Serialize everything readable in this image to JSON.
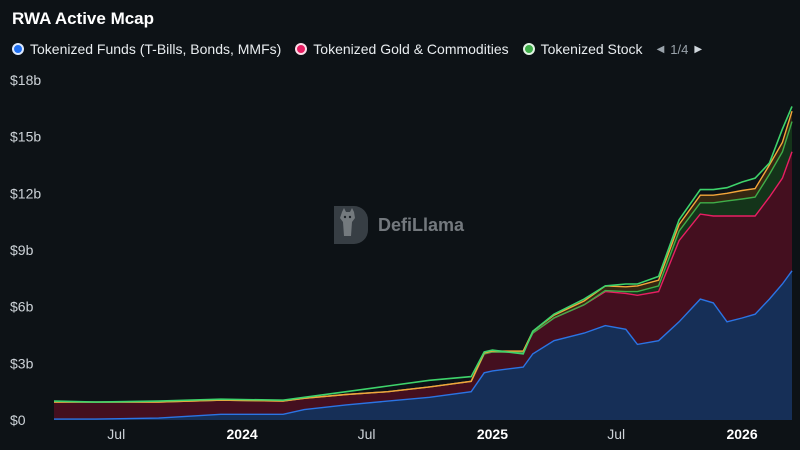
{
  "title": "RWA Active Mcap",
  "legend": {
    "items": [
      {
        "label": "Tokenized Funds (T-Bills, Bonds, MMFs)",
        "color": "#1f6ff0",
        "icon": "circle"
      },
      {
        "label": "Tokenized Gold & Commodities",
        "color": "#e91e63",
        "icon": "circle"
      },
      {
        "label": "Tokenized Stock",
        "color": "#3fae49",
        "icon": "circle"
      }
    ],
    "page": "1/4",
    "prev_icon": "triangle-left-icon",
    "next_icon": "triangle-right-icon"
  },
  "watermark": {
    "text": "DefiLlama",
    "icon": "llama-logo-icon"
  },
  "chart_data": {
    "type": "area",
    "stacked": true,
    "x_axis": {
      "type": "date",
      "range": [
        "2023-04-01",
        "2026-03-15"
      ],
      "tick_labels": [
        {
          "date": "2023-07-01",
          "label": "Jul",
          "bold": false
        },
        {
          "date": "2024-01-01",
          "label": "2024",
          "bold": true
        },
        {
          "date": "2024-07-01",
          "label": "Jul",
          "bold": false
        },
        {
          "date": "2025-01-01",
          "label": "2025",
          "bold": true
        },
        {
          "date": "2025-07-01",
          "label": "Jul",
          "bold": false
        },
        {
          "date": "2026-01-01",
          "label": "2026",
          "bold": true
        }
      ]
    },
    "y_axis": {
      "unit": "USD billions",
      "ylim": [
        0,
        18
      ],
      "tick_values": [
        0,
        3,
        6,
        9,
        12,
        15,
        18
      ],
      "tick_labels": [
        "$0",
        "$3b",
        "$6b",
        "$9b",
        "$12b",
        "$15b",
        "$18b"
      ]
    },
    "grid": false,
    "series": [
      {
        "name": "Tokenized Funds (T-Bills, Bonds, MMFs)",
        "color": "#2b74e4",
        "fill": "#17335e",
        "points": [
          [
            "2023-04-01",
            0.05
          ],
          [
            "2023-06-01",
            0.05
          ],
          [
            "2023-09-01",
            0.1
          ],
          [
            "2023-12-01",
            0.3
          ],
          [
            "2024-03-01",
            0.3
          ],
          [
            "2024-04-01",
            0.55
          ],
          [
            "2024-06-01",
            0.8
          ],
          [
            "2024-08-01",
            1.0
          ],
          [
            "2024-10-01",
            1.2
          ],
          [
            "2024-12-01",
            1.5
          ],
          [
            "2024-12-20",
            2.5
          ],
          [
            "2025-01-01",
            2.6
          ],
          [
            "2025-02-15",
            2.8
          ],
          [
            "2025-03-01",
            3.5
          ],
          [
            "2025-04-01",
            4.2
          ],
          [
            "2025-05-15",
            4.6
          ],
          [
            "2025-06-15",
            5.0
          ],
          [
            "2025-07-15",
            4.8
          ],
          [
            "2025-08-01",
            4.0
          ],
          [
            "2025-09-01",
            4.2
          ],
          [
            "2025-10-01",
            5.2
          ],
          [
            "2025-11-01",
            6.4
          ],
          [
            "2025-11-20",
            6.2
          ],
          [
            "2025-12-10",
            5.2
          ],
          [
            "2026-01-01",
            5.4
          ],
          [
            "2026-01-20",
            5.6
          ],
          [
            "2026-02-10",
            6.4
          ],
          [
            "2026-03-01",
            7.2
          ],
          [
            "2026-03-15",
            7.9
          ]
        ]
      },
      {
        "name": "Tokenized Gold & Commodities",
        "color": "#e91e63",
        "fill": "#4a1020",
        "points": [
          [
            "2023-04-01",
            0.9
          ],
          [
            "2023-06-01",
            0.9
          ],
          [
            "2023-09-01",
            0.85
          ],
          [
            "2023-12-01",
            0.75
          ],
          [
            "2024-03-01",
            0.7
          ],
          [
            "2024-04-01",
            0.6
          ],
          [
            "2024-06-01",
            0.55
          ],
          [
            "2024-08-01",
            0.5
          ],
          [
            "2024-10-01",
            0.55
          ],
          [
            "2024-12-01",
            0.55
          ],
          [
            "2024-12-20",
            1.0
          ],
          [
            "2025-01-01",
            1.0
          ],
          [
            "2025-02-15",
            0.8
          ],
          [
            "2025-03-01",
            1.1
          ],
          [
            "2025-04-01",
            1.2
          ],
          [
            "2025-05-15",
            1.5
          ],
          [
            "2025-06-15",
            1.8
          ],
          [
            "2025-07-15",
            1.9
          ],
          [
            "2025-08-01",
            2.6
          ],
          [
            "2025-09-01",
            2.6
          ],
          [
            "2025-10-01",
            4.3
          ],
          [
            "2025-11-01",
            4.5
          ],
          [
            "2025-11-20",
            4.6
          ],
          [
            "2025-12-10",
            5.6
          ],
          [
            "2026-01-01",
            5.4
          ],
          [
            "2026-01-20",
            5.2
          ],
          [
            "2026-02-10",
            5.4
          ],
          [
            "2026-03-01",
            5.6
          ],
          [
            "2026-03-15",
            6.3
          ]
        ]
      },
      {
        "name": "Tokenized Stock",
        "color": "#3fae49",
        "fill": "#15391b",
        "points": [
          [
            "2023-04-01",
            0.0
          ],
          [
            "2023-06-01",
            0.0
          ],
          [
            "2023-09-01",
            0.0
          ],
          [
            "2023-12-01",
            0.0
          ],
          [
            "2024-03-01",
            0.0
          ],
          [
            "2024-04-01",
            0.0
          ],
          [
            "2024-06-01",
            0.0
          ],
          [
            "2024-08-01",
            0.0
          ],
          [
            "2024-10-01",
            0.0
          ],
          [
            "2024-12-01",
            0.0
          ],
          [
            "2024-12-20",
            0.0
          ],
          [
            "2025-01-01",
            0.0
          ],
          [
            "2025-02-15",
            0.0
          ],
          [
            "2025-03-01",
            0.0
          ],
          [
            "2025-04-01",
            0.0
          ],
          [
            "2025-05-15",
            0.0
          ],
          [
            "2025-06-15",
            0.05
          ],
          [
            "2025-07-15",
            0.1
          ],
          [
            "2025-08-01",
            0.2
          ],
          [
            "2025-09-01",
            0.3
          ],
          [
            "2025-10-01",
            0.5
          ],
          [
            "2025-11-01",
            0.6
          ],
          [
            "2025-11-20",
            0.7
          ],
          [
            "2025-12-10",
            0.8
          ],
          [
            "2026-01-01",
            0.9
          ],
          [
            "2026-01-20",
            1.0
          ],
          [
            "2026-02-10",
            1.2
          ],
          [
            "2026-03-01",
            1.4
          ],
          [
            "2026-03-15",
            1.6
          ]
        ]
      },
      {
        "name": "",
        "color": "#f4a63a",
        "fill": "#3a2a12",
        "points": [
          [
            "2023-04-01",
            0.0
          ],
          [
            "2023-06-01",
            0.0
          ],
          [
            "2023-09-01",
            0.0
          ],
          [
            "2023-12-01",
            0.0
          ],
          [
            "2024-03-01",
            0.0
          ],
          [
            "2024-04-01",
            0.0
          ],
          [
            "2024-06-01",
            0.0
          ],
          [
            "2024-08-01",
            0.0
          ],
          [
            "2024-10-01",
            0.0
          ],
          [
            "2024-12-01",
            0.0
          ],
          [
            "2024-12-20",
            0.05
          ],
          [
            "2025-01-01",
            0.05
          ],
          [
            "2025-02-15",
            0.05
          ],
          [
            "2025-03-01",
            0.1
          ],
          [
            "2025-04-01",
            0.15
          ],
          [
            "2025-05-15",
            0.2
          ],
          [
            "2025-06-15",
            0.25
          ],
          [
            "2025-07-15",
            0.25
          ],
          [
            "2025-08-01",
            0.3
          ],
          [
            "2025-09-01",
            0.3
          ],
          [
            "2025-10-01",
            0.35
          ],
          [
            "2025-11-01",
            0.4
          ],
          [
            "2025-11-20",
            0.4
          ],
          [
            "2025-12-10",
            0.4
          ],
          [
            "2026-01-01",
            0.45
          ],
          [
            "2026-01-20",
            0.45
          ],
          [
            "2026-02-10",
            0.5
          ],
          [
            "2026-03-01",
            0.5
          ],
          [
            "2026-03-15",
            0.55
          ]
        ]
      }
    ],
    "total_line": {
      "color": "#3ed36b",
      "points": [
        [
          "2023-04-01",
          1.0
        ],
        [
          "2023-06-01",
          0.95
        ],
        [
          "2023-09-01",
          1.0
        ],
        [
          "2023-12-01",
          1.1
        ],
        [
          "2024-03-01",
          1.05
        ],
        [
          "2024-04-01",
          1.2
        ],
        [
          "2024-06-01",
          1.5
        ],
        [
          "2024-08-01",
          1.8
        ],
        [
          "2024-10-01",
          2.1
        ],
        [
          "2024-12-01",
          2.3
        ],
        [
          "2024-12-20",
          3.6
        ],
        [
          "2025-01-01",
          3.7
        ],
        [
          "2025-02-15",
          3.5
        ],
        [
          "2025-03-01",
          4.7
        ],
        [
          "2025-04-01",
          5.6
        ],
        [
          "2025-05-15",
          6.4
        ],
        [
          "2025-06-15",
          7.1
        ],
        [
          "2025-07-15",
          7.2
        ],
        [
          "2025-08-01",
          7.2
        ],
        [
          "2025-09-01",
          7.6
        ],
        [
          "2025-10-01",
          10.6
        ],
        [
          "2025-11-01",
          12.2
        ],
        [
          "2025-11-20",
          12.2
        ],
        [
          "2025-12-10",
          12.3
        ],
        [
          "2026-01-01",
          12.6
        ],
        [
          "2026-01-20",
          12.8
        ],
        [
          "2026-02-10",
          13.6
        ],
        [
          "2026-03-01",
          15.4
        ],
        [
          "2026-03-15",
          16.6
        ]
      ]
    }
  }
}
